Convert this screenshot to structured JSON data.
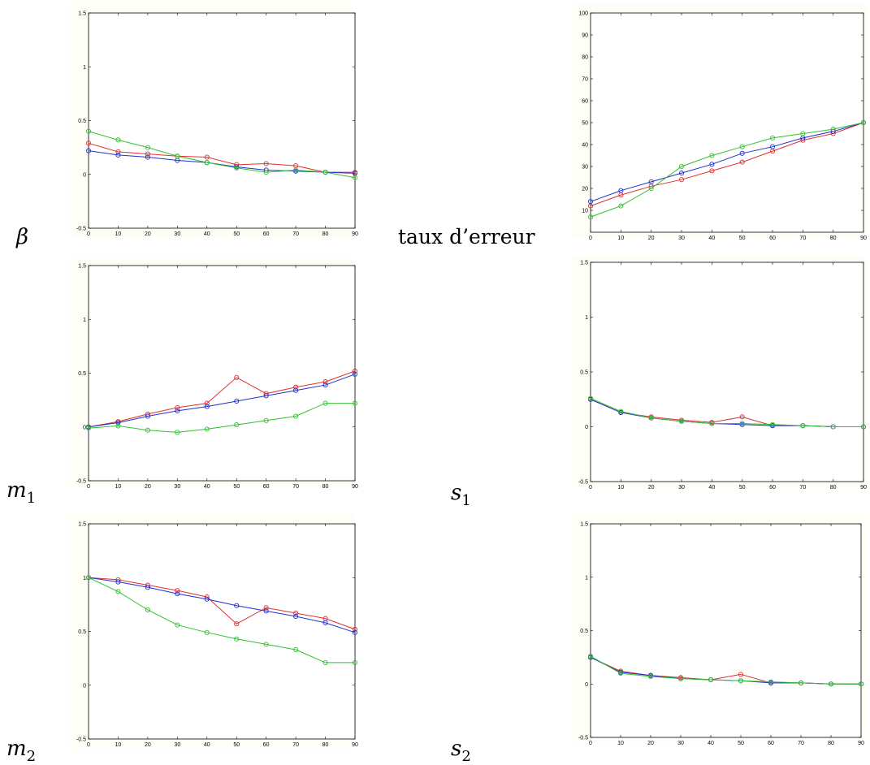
{
  "chart_data": [
    {
      "type": "line",
      "label": "β",
      "x": [
        0,
        10,
        20,
        30,
        40,
        50,
        60,
        70,
        80,
        90
      ],
      "xlim": [
        0,
        90
      ],
      "ylim": [
        -0.5,
        1.5
      ],
      "xticks": [
        "0",
        "10",
        "20",
        "30",
        "40",
        "50",
        "60",
        "70",
        "80",
        "90"
      ],
      "yticks": [
        "-0.5",
        "0",
        "0.5",
        "1",
        "1.5"
      ],
      "series": [
        {
          "color": "#e03030",
          "values": [
            0.29,
            0.21,
            0.19,
            0.17,
            0.16,
            0.09,
            0.1,
            0.08,
            0.02,
            0.02
          ]
        },
        {
          "color": "#2030d0",
          "values": [
            0.22,
            0.18,
            0.16,
            0.13,
            0.11,
            0.07,
            0.04,
            0.03,
            0.02,
            0.01
          ]
        },
        {
          "color": "#30c030",
          "values": [
            0.4,
            0.32,
            0.25,
            0.17,
            0.11,
            0.06,
            0.02,
            0.04,
            0.02,
            -0.03
          ]
        }
      ]
    },
    {
      "type": "line",
      "label": "taux d’erreur",
      "x": [
        0,
        10,
        20,
        30,
        40,
        50,
        60,
        70,
        80,
        90
      ],
      "xlim": [
        0,
        90
      ],
      "ylim": [
        0,
        100
      ],
      "xticks": [
        "0",
        "10",
        "20",
        "30",
        "40",
        "50",
        "60",
        "70",
        "80",
        "90"
      ],
      "yticks": [
        "10",
        "20",
        "30",
        "40",
        "50",
        "60",
        "70",
        "80",
        "90",
        "100"
      ],
      "series": [
        {
          "color": "#e03030",
          "values": [
            12,
            17,
            21,
            24,
            28,
            32,
            37,
            42,
            45,
            50
          ]
        },
        {
          "color": "#2030d0",
          "values": [
            14,
            19,
            23,
            27,
            31,
            36,
            39,
            43,
            46,
            50
          ]
        },
        {
          "color": "#30c030",
          "values": [
            7,
            12,
            20,
            30,
            35,
            39,
            43,
            45,
            47,
            50
          ]
        }
      ]
    },
    {
      "type": "line",
      "label": "m",
      "sub": "1",
      "x": [
        0,
        10,
        20,
        30,
        40,
        50,
        60,
        70,
        80,
        90
      ],
      "xlim": [
        0,
        90
      ],
      "ylim": [
        -0.5,
        1.5
      ],
      "xticks": [
        "0",
        "10",
        "20",
        "30",
        "40",
        "50",
        "60",
        "70",
        "80",
        "90"
      ],
      "yticks": [
        "-0.5",
        "0",
        "0.5",
        "1",
        "1.5"
      ],
      "series": [
        {
          "color": "#e03030",
          "values": [
            0.0,
            0.05,
            0.12,
            0.18,
            0.22,
            0.46,
            0.31,
            0.37,
            0.42,
            0.52
          ]
        },
        {
          "color": "#2030d0",
          "values": [
            0.0,
            0.04,
            0.1,
            0.15,
            0.19,
            0.24,
            0.29,
            0.34,
            0.39,
            0.49
          ]
        },
        {
          "color": "#30c030",
          "values": [
            -0.01,
            0.01,
            -0.03,
            -0.05,
            -0.02,
            0.02,
            0.06,
            0.1,
            0.22,
            0.22
          ]
        }
      ]
    },
    {
      "type": "line",
      "label": "s",
      "sub": "1",
      "x": [
        0,
        10,
        20,
        30,
        40,
        50,
        60,
        70,
        80,
        90
      ],
      "xlim": [
        0,
        90
      ],
      "ylim": [
        -0.5,
        1.5
      ],
      "xticks": [
        "0",
        "10",
        "20",
        "30",
        "40",
        "50",
        "60",
        "70",
        "80",
        "90"
      ],
      "yticks": [
        "-0.5",
        "0",
        "0.5",
        "1",
        "1.5"
      ],
      "series": [
        {
          "color": "#e03030",
          "values": [
            0.25,
            0.13,
            0.09,
            0.06,
            0.04,
            0.09,
            0.01,
            0.01,
            0.0,
            0.0
          ]
        },
        {
          "color": "#2030d0",
          "values": [
            0.25,
            0.13,
            0.08,
            0.05,
            0.03,
            0.02,
            0.01,
            0.01,
            0.0,
            0.0
          ]
        },
        {
          "color": "#30c030",
          "values": [
            0.26,
            0.14,
            0.08,
            0.05,
            0.03,
            0.03,
            0.02,
            0.01,
            0.0,
            0.0
          ]
        }
      ]
    },
    {
      "type": "line",
      "label": "m",
      "sub": "2",
      "x": [
        0,
        10,
        20,
        30,
        40,
        50,
        60,
        70,
        80,
        90
      ],
      "xlim": [
        0,
        90
      ],
      "ylim": [
        -0.5,
        1.5
      ],
      "xticks": [
        "0",
        "10",
        "20",
        "30",
        "40",
        "50",
        "60",
        "70",
        "80",
        "90"
      ],
      "yticks": [
        "-0.5",
        "0",
        "0.5",
        "1",
        "1.5"
      ],
      "series": [
        {
          "color": "#e03030",
          "values": [
            1.0,
            0.98,
            0.93,
            0.88,
            0.82,
            0.57,
            0.72,
            0.67,
            0.62,
            0.52
          ]
        },
        {
          "color": "#2030d0",
          "values": [
            1.0,
            0.96,
            0.91,
            0.85,
            0.8,
            0.74,
            0.69,
            0.64,
            0.58,
            0.49
          ]
        },
        {
          "color": "#30c030",
          "values": [
            1.0,
            0.87,
            0.7,
            0.56,
            0.49,
            0.43,
            0.38,
            0.33,
            0.21,
            0.21
          ]
        }
      ]
    },
    {
      "type": "line",
      "label": "s",
      "sub": "2",
      "x": [
        0,
        10,
        20,
        30,
        40,
        50,
        60,
        70,
        80,
        90
      ],
      "xlim": [
        0,
        90
      ],
      "ylim": [
        -0.5,
        1.5
      ],
      "xticks": [
        "0",
        "10",
        "20",
        "30",
        "40",
        "50",
        "60",
        "70",
        "80",
        "90"
      ],
      "yticks": [
        "-0.5",
        "0",
        "0.5",
        "1",
        "1.5"
      ],
      "series": [
        {
          "color": "#e03030",
          "values": [
            0.25,
            0.12,
            0.08,
            0.06,
            0.04,
            0.09,
            0.01,
            0.01,
            0.0,
            0.0
          ]
        },
        {
          "color": "#2030d0",
          "values": [
            0.25,
            0.11,
            0.08,
            0.05,
            0.04,
            0.03,
            0.01,
            0.01,
            0.0,
            0.0
          ]
        },
        {
          "color": "#30c030",
          "values": [
            0.26,
            0.1,
            0.07,
            0.05,
            0.04,
            0.03,
            0.02,
            0.01,
            0.0,
            0.0
          ]
        }
      ]
    }
  ]
}
